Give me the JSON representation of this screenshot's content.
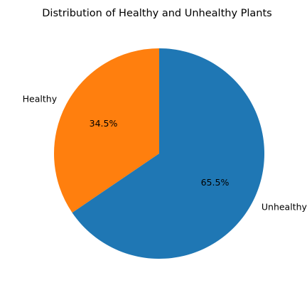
{
  "chart_data": {
    "type": "pie",
    "title": "Distribution of Healthy and Unhealthy Plants",
    "slices": [
      {
        "label": "Healthy",
        "value": 34.5,
        "pct_label": "34.5%",
        "color": "#ff7f0e"
      },
      {
        "label": "Unhealthy",
        "value": 65.5,
        "pct_label": "65.5%",
        "color": "#1f77b4"
      }
    ],
    "start_angle_deg": 90,
    "direction": "counterclockwise",
    "legend": "none"
  }
}
